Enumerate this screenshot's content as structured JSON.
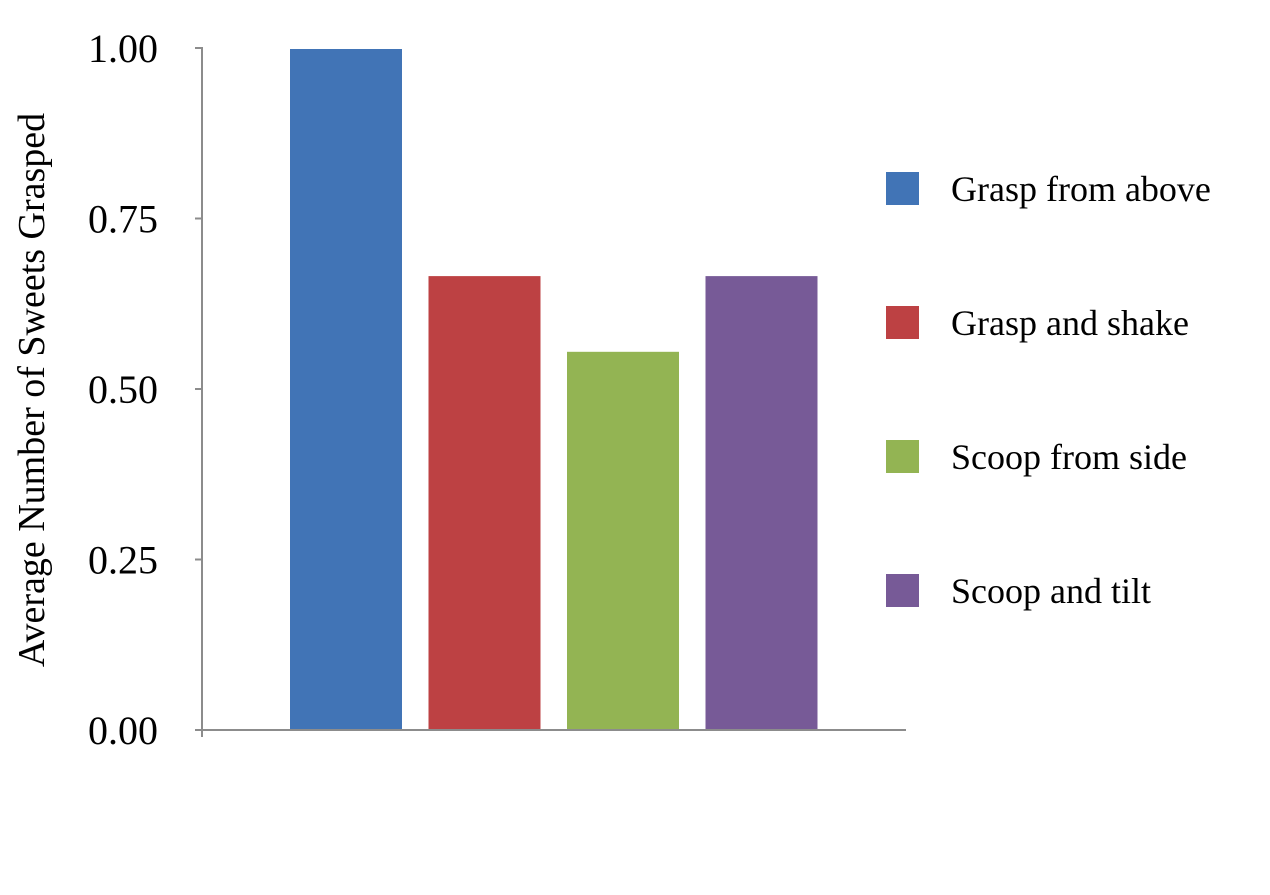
{
  "chart_data": {
    "type": "bar",
    "title": "",
    "xlabel": "",
    "ylabel": "Average Number of Sweets Grasped",
    "ylim": [
      0,
      1
    ],
    "yticks": [
      "0.00",
      "0.25",
      "0.50",
      "0.75",
      "1.00"
    ],
    "ytick_values": [
      0,
      0.25,
      0.5,
      0.75,
      1.0
    ],
    "grid": false,
    "legend_position": "right",
    "series": [
      {
        "name": "Grasp from above",
        "value": 1.0,
        "color": "#4174b6"
      },
      {
        "name": "Grasp and shake",
        "value": 0.667,
        "color": "#bd4143"
      },
      {
        "name": "Scoop from side",
        "value": 0.556,
        "color": "#93b453"
      },
      {
        "name": "Scoop and tilt",
        "value": 0.667,
        "color": "#775a97"
      }
    ]
  }
}
